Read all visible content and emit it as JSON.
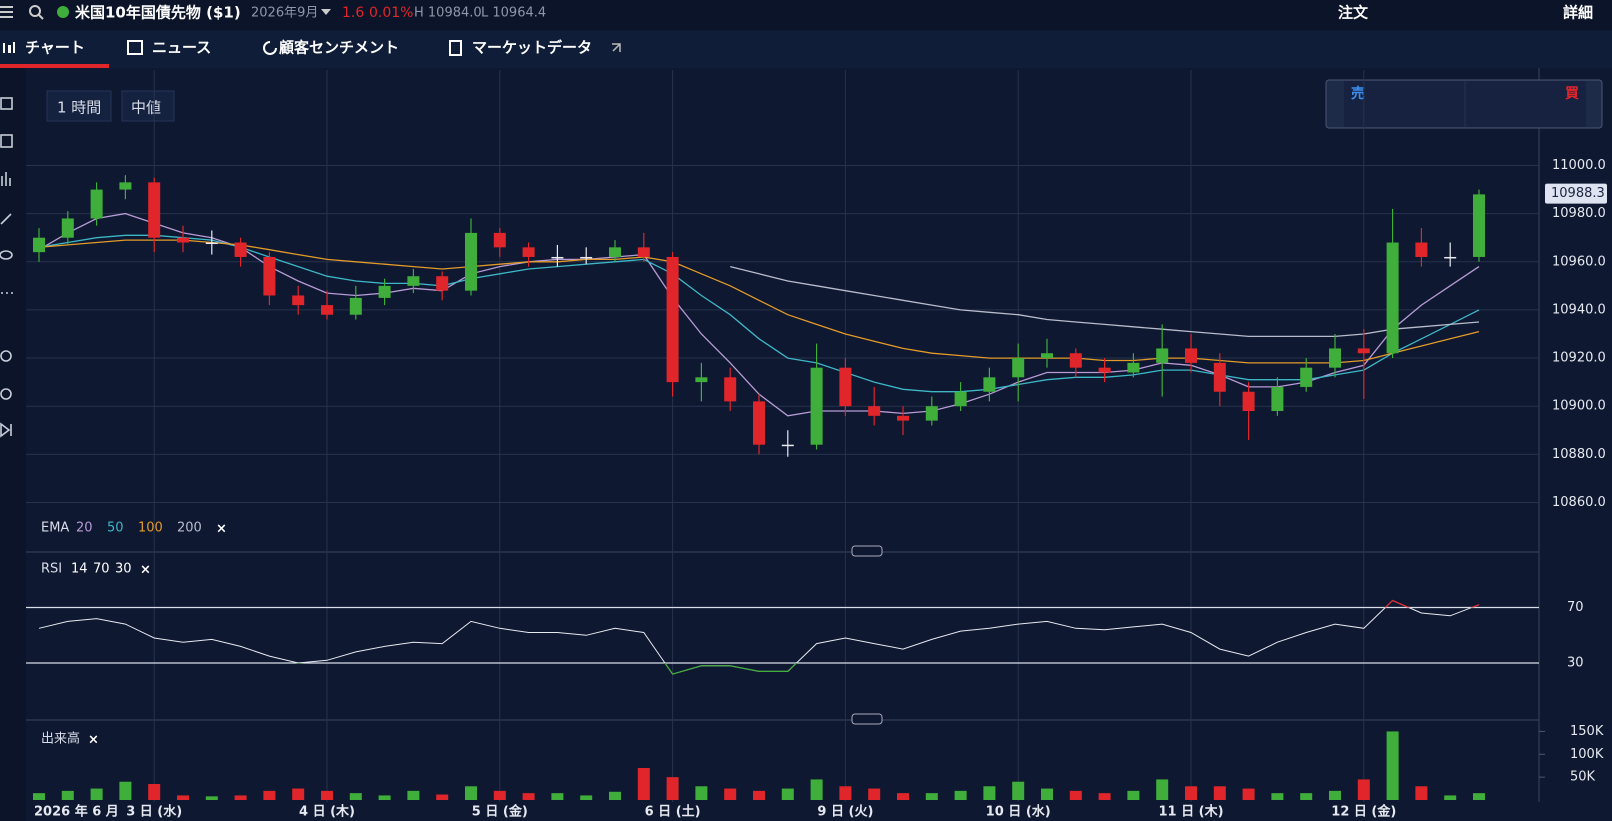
{
  "header": {
    "title": "米国10年国債先物 ($1)",
    "contract": "2026年9月",
    "change": 1.6,
    "change_pct": "0.01%",
    "high": "H 10984.0",
    "low": "L 10964.4",
    "order": "注文",
    "detail": "詳細"
  },
  "tabs": [
    "チャート",
    "ニュース",
    "顧客センチメント",
    "マーケットデータ"
  ],
  "controls": {
    "interval": "1 時間",
    "price_type": "中値",
    "sell": "売",
    "buy": "買"
  },
  "chart_data": {
    "type": "candlestick",
    "categories": [
      "2026 年 6 月",
      null,
      null,
      null,
      "3 日 (水)",
      null,
      null,
      null,
      null,
      null,
      "4 日 (木)",
      null,
      null,
      null,
      null,
      null,
      "5 日 (金)",
      null,
      null,
      null,
      null,
      null,
      "6 日 (土)",
      null,
      null,
      null,
      null,
      null,
      "9 日 (火)",
      null,
      null,
      null,
      null,
      null,
      "10 日 (水)",
      null,
      null,
      null,
      null,
      null,
      "11 日 (木)",
      null,
      null,
      null,
      null,
      null,
      "12 日 (金)",
      null,
      null,
      null,
      null
    ],
    "open": [
      10964,
      10970,
      10978,
      10990,
      10993,
      10970,
      10968,
      10968,
      10962,
      10946,
      10942,
      10938,
      10945,
      10950,
      10954,
      10948,
      10972,
      10966,
      10962,
      10962,
      10962,
      10966,
      10962,
      10910,
      10912,
      10902,
      10884,
      10884,
      10916,
      10900,
      10896,
      10894,
      10900,
      10906,
      10912,
      10920,
      10922,
      10916,
      10914,
      10918,
      10924,
      10918,
      10906,
      10898,
      10908,
      10916,
      10924,
      10922,
      10968,
      10962,
      10962
    ],
    "high": [
      10974,
      10981,
      10993,
      10996,
      10995,
      10975,
      10973,
      10970,
      10964,
      10950,
      10948,
      10950,
      10953,
      10957,
      10956,
      10978,
      10974,
      10968,
      10967,
      10966,
      10969,
      10972,
      10964,
      10918,
      10916,
      10905,
      10890,
      10926,
      10920,
      10908,
      10900,
      10904,
      10910,
      10916,
      10926,
      10928,
      10924,
      10920,
      10922,
      10934,
      10930,
      10922,
      10910,
      10912,
      10920,
      10930,
      10932,
      10982,
      10974,
      10968,
      10990
    ],
    "low": [
      10960,
      10967,
      10975,
      10986,
      10964,
      10964,
      10963,
      10958,
      10942,
      10938,
      10936,
      10936,
      10942,
      10947,
      10944,
      10946,
      10962,
      10958,
      10958,
      10959,
      10960,
      10960,
      10904,
      10902,
      10898,
      10880,
      10879,
      10882,
      10896,
      10892,
      10888,
      10892,
      10898,
      10902,
      10902,
      10916,
      10912,
      10910,
      10912,
      10904,
      10914,
      10900,
      10886,
      10896,
      10906,
      10912,
      10903,
      10920,
      10958,
      10958,
      10960
    ],
    "close": [
      10970,
      10978,
      10990,
      10993,
      10970,
      10968,
      10968,
      10962,
      10946,
      10942,
      10938,
      10945,
      10950,
      10954,
      10948,
      10972,
      10966,
      10962,
      10962,
      10962,
      10966,
      10962,
      10910,
      10912,
      10902,
      10884,
      10884,
      10916,
      10900,
      10896,
      10894,
      10900,
      10906,
      10912,
      10920,
      10922,
      10916,
      10914,
      10918,
      10924,
      10918,
      10906,
      10898,
      10908,
      10916,
      10924,
      10922,
      10968,
      10962,
      10962,
      10988
    ],
    "up_color": "#3fae3a",
    "down_color": "#e0262b",
    "last_price": 10988.3,
    "ylim": [
      10840,
      11030
    ],
    "yticks": [
      {
        "value": 10860,
        "label": "10860.0"
      },
      {
        "value": 10880,
        "label": "10880.0"
      },
      {
        "value": 10900,
        "label": "10900.0"
      },
      {
        "value": 10920,
        "label": "10920.0"
      },
      {
        "value": 10940,
        "label": "10940.0"
      },
      {
        "value": 10960,
        "label": "10960.0"
      },
      {
        "value": 10980,
        "label": "10980.0"
      },
      {
        "value": 11000,
        "label": "11000.0"
      }
    ],
    "grid": true,
    "ema_label": "EMA",
    "ema": [
      {
        "name": "20",
        "color": "#b89bd6",
        "values": [
          10965,
          10972,
          10978,
          10980,
          10976,
          10972,
          10970,
          10966,
          10958,
          10952,
          10947,
          10946,
          10947,
          10949,
          10948,
          10955,
          10958,
          10960,
          10961,
          10961,
          10962,
          10963,
          10945,
          10930,
          10918,
          10905,
          10896,
          10898,
          10898,
          10898,
          10897,
          10898,
          10901,
          10905,
          10910,
          10914,
          10914,
          10914,
          10915,
          10918,
          10917,
          10913,
          10908,
          10908,
          10910,
          10914,
          10917,
          10932,
          10942,
          10950,
          10958
        ]
      },
      {
        "name": "50",
        "color": "#3db6c6",
        "values": [
          10966,
          10968,
          10970,
          10971,
          10971,
          10970,
          10969,
          10966,
          10962,
          10958,
          10954,
          10952,
          10951,
          10951,
          10950,
          10953,
          10955,
          10957,
          10958,
          10959,
          10960,
          10961,
          10955,
          10946,
          10938,
          10928,
          10920,
          10918,
          10914,
          10910,
          10907,
          10906,
          10906,
          10907,
          10909,
          10911,
          10912,
          10912,
          10913,
          10915,
          10915,
          10913,
          10911,
          10911,
          10911,
          10913,
          10915,
          10922,
          10928,
          10934,
          10940
        ]
      },
      {
        "name": "100",
        "color": "#e39a2a",
        "values": [
          10966,
          10967,
          10968,
          10969,
          10969,
          10969,
          10968,
          10967,
          10965,
          10963,
          10961,
          10960,
          10959,
          10958,
          10957,
          10958,
          10959,
          10960,
          10960,
          10961,
          10961,
          10962,
          10960,
          10955,
          10950,
          10944,
          10938,
          10934,
          10930,
          10927,
          10924,
          10922,
          10921,
          10920,
          10920,
          10920,
          10920,
          10919,
          10919,
          10920,
          10920,
          10919,
          10918,
          10918,
          10918,
          10918,
          10919,
          10922,
          10925,
          10928,
          10931
        ]
      },
      {
        "name": "200",
        "color": "#b8bccb",
        "values": [
          null,
          null,
          null,
          null,
          null,
          null,
          null,
          null,
          null,
          null,
          null,
          null,
          null,
          null,
          null,
          null,
          null,
          null,
          null,
          null,
          null,
          null,
          null,
          null,
          10958,
          10955,
          10952,
          10950,
          10948,
          10946,
          10944,
          10942,
          10940,
          10939,
          10938,
          10936,
          10935,
          10934,
          10933,
          10932,
          10931,
          10930,
          10929,
          10929,
          10929,
          10929,
          10930,
          10932,
          10933,
          10934,
          10935
        ]
      }
    ],
    "rsi": {
      "label": "RSI",
      "params": [
        14,
        70,
        30
      ],
      "color": "#e8eaf0",
      "overbought_color": "#e0262b",
      "oversold_color": "#3fae3a",
      "values": [
        55,
        60,
        62,
        58,
        48,
        45,
        47,
        42,
        35,
        30,
        32,
        38,
        42,
        45,
        44,
        60,
        55,
        52,
        52,
        50,
        55,
        52,
        22,
        28,
        28,
        24,
        24,
        44,
        48,
        44,
        40,
        47,
        53,
        55,
        58,
        60,
        55,
        54,
        56,
        58,
        52,
        40,
        35,
        45,
        52,
        58,
        55,
        75,
        66,
        64,
        72
      ],
      "ylim": [
        0,
        100
      ],
      "yticks": [
        30,
        70
      ]
    },
    "volume": {
      "label": "出来高",
      "values": [
        15000,
        20000,
        25000,
        40000,
        35000,
        10000,
        8000,
        10000,
        20000,
        25000,
        20000,
        15000,
        10000,
        20000,
        12000,
        30000,
        20000,
        15000,
        15000,
        10000,
        18000,
        70000,
        50000,
        30000,
        25000,
        20000,
        25000,
        45000,
        30000,
        25000,
        15000,
        15000,
        20000,
        30000,
        40000,
        25000,
        20000,
        15000,
        20000,
        45000,
        30000,
        30000,
        25000,
        15000,
        15000,
        20000,
        45000,
        150000,
        30000,
        10000,
        15000
      ],
      "ylim": [
        0,
        175000
      ],
      "yticks": [
        {
          "value": 50000,
          "label": "50K"
        },
        {
          "value": 100000,
          "label": "100K"
        },
        {
          "value": 150000,
          "label": "150K"
        }
      ]
    }
  }
}
